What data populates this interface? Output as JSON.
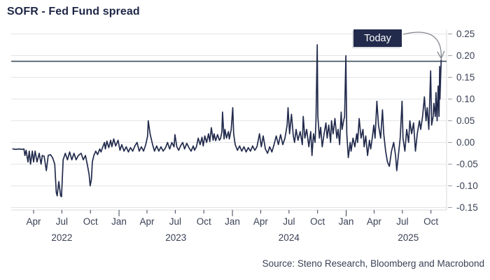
{
  "title": "SOFR - Fed Fund spread",
  "source": "Source: Steno Research, Bloomberg and Macrobond",
  "annotation": {
    "label": "Today"
  },
  "colors": {
    "series": "#222b4c",
    "grid": "#e3e4e6",
    "axis_line": "#d8dade",
    "tick": "#9aa0ab",
    "tick_label": "#3a4156",
    "title": "#1e2646",
    "today_line": "#3f4e57",
    "annotation_bg": "#222b4c",
    "annotation_text": "#ffffff",
    "arrow": "#83878e"
  },
  "chart_data": {
    "type": "line",
    "title": "SOFR - Fed Fund spread",
    "xlabel": "",
    "ylabel": "",
    "x_range": [
      "2022-01-20",
      "2025-11-10"
    ],
    "ylim": [
      -0.15,
      0.25
    ],
    "grid": true,
    "legend": "none",
    "y_axis_side": "right",
    "y_ticks": [
      {
        "v": 0.25,
        "label": "0.25"
      },
      {
        "v": 0.2,
        "label": "0.20"
      },
      {
        "v": 0.15,
        "label": "0.15"
      },
      {
        "v": 0.1,
        "label": "0.10"
      },
      {
        "v": 0.05,
        "label": "0.05"
      },
      {
        "v": 0.0,
        "label": "0.00"
      },
      {
        "v": -0.05,
        "label": "-0.05"
      },
      {
        "v": -0.1,
        "label": "-0.10"
      },
      {
        "v": -0.15,
        "label": "-0.15"
      }
    ],
    "x_ticks": [
      {
        "label": "Apr",
        "date": "2022-04-01"
      },
      {
        "label": "Jul",
        "date": "2022-07-01"
      },
      {
        "label": "Oct",
        "date": "2022-10-01"
      },
      {
        "label": "Jan",
        "date": "2023-01-01"
      },
      {
        "label": "Apr",
        "date": "2023-04-01"
      },
      {
        "label": "Jul",
        "date": "2023-07-01"
      },
      {
        "label": "Oct",
        "date": "2023-10-01"
      },
      {
        "label": "Jan",
        "date": "2024-01-01"
      },
      {
        "label": "Apr",
        "date": "2024-04-01"
      },
      {
        "label": "Jul",
        "date": "2024-07-01"
      },
      {
        "label": "Oct",
        "date": "2024-10-01"
      },
      {
        "label": "Jan",
        "date": "2025-01-01"
      },
      {
        "label": "Apr",
        "date": "2025-04-01"
      },
      {
        "label": "Jul",
        "date": "2025-07-01"
      },
      {
        "label": "Oct",
        "date": "2025-10-01"
      }
    ],
    "year_labels": [
      {
        "label": "2022",
        "date": "2022-07-01"
      },
      {
        "label": "2023",
        "date": "2023-07-03"
      },
      {
        "label": "2024",
        "date": "2024-07-01"
      },
      {
        "label": "2025",
        "date": "2025-07-20"
      }
    ],
    "today_line_value": 0.187,
    "series": [
      {
        "name": "SOFR - Fed Fund spread",
        "points": [
          [
            "2022-01-24",
            -0.015
          ],
          [
            "2022-02-03",
            -0.016
          ],
          [
            "2022-02-14",
            -0.015
          ],
          [
            "2022-02-24",
            -0.016
          ],
          [
            "2022-03-01",
            -0.015
          ],
          [
            "2022-03-04",
            -0.03
          ],
          [
            "2022-03-08",
            -0.018
          ],
          [
            "2022-03-14",
            -0.045
          ],
          [
            "2022-03-18",
            -0.02
          ],
          [
            "2022-03-22",
            -0.05
          ],
          [
            "2022-03-28",
            -0.02
          ],
          [
            "2022-04-01",
            -0.045
          ],
          [
            "2022-04-06",
            -0.02
          ],
          [
            "2022-04-12",
            -0.045
          ],
          [
            "2022-04-19",
            -0.025
          ],
          [
            "2022-04-25",
            -0.05
          ],
          [
            "2022-04-29",
            -0.03
          ],
          [
            "2022-05-05",
            -0.032
          ],
          [
            "2022-05-12",
            -0.065
          ],
          [
            "2022-05-18",
            -0.03
          ],
          [
            "2022-05-25",
            -0.028
          ],
          [
            "2022-06-01",
            -0.035
          ],
          [
            "2022-06-08",
            -0.05
          ],
          [
            "2022-06-13",
            -0.115
          ],
          [
            "2022-06-16",
            -0.123
          ],
          [
            "2022-06-21",
            -0.09
          ],
          [
            "2022-06-27",
            -0.123
          ],
          [
            "2022-06-30",
            -0.125
          ],
          [
            "2022-07-05",
            -0.04
          ],
          [
            "2022-07-12",
            -0.025
          ],
          [
            "2022-07-19",
            -0.04
          ],
          [
            "2022-07-26",
            -0.022
          ],
          [
            "2022-08-02",
            -0.04
          ],
          [
            "2022-08-09",
            -0.025
          ],
          [
            "2022-08-16",
            -0.04
          ],
          [
            "2022-08-23",
            -0.03
          ],
          [
            "2022-09-01",
            -0.025
          ],
          [
            "2022-09-08",
            -0.04
          ],
          [
            "2022-09-15",
            -0.03
          ],
          [
            "2022-09-22",
            -0.055
          ],
          [
            "2022-09-27",
            -0.075
          ],
          [
            "2022-09-30",
            -0.1
          ],
          [
            "2022-10-04",
            -0.085
          ],
          [
            "2022-10-07",
            -0.045
          ],
          [
            "2022-10-12",
            -0.03
          ],
          [
            "2022-10-18",
            -0.02
          ],
          [
            "2022-10-24",
            -0.028
          ],
          [
            "2022-10-31",
            -0.015
          ],
          [
            "2022-11-04",
            -0.022
          ],
          [
            "2022-11-09",
            -0.012
          ],
          [
            "2022-11-15",
            0.0
          ],
          [
            "2022-11-18",
            -0.015
          ],
          [
            "2022-11-23",
            0.003
          ],
          [
            "2022-11-29",
            -0.012
          ],
          [
            "2022-12-05",
            0.005
          ],
          [
            "2022-12-09",
            -0.01
          ],
          [
            "2022-12-15",
            0.008
          ],
          [
            "2022-12-21",
            -0.008
          ],
          [
            "2022-12-29",
            0.005
          ],
          [
            "2023-01-04",
            -0.018
          ],
          [
            "2023-01-10",
            -0.005
          ],
          [
            "2023-01-17",
            -0.02
          ],
          [
            "2023-01-24",
            -0.01
          ],
          [
            "2023-01-31",
            -0.022
          ],
          [
            "2023-02-07",
            -0.012
          ],
          [
            "2023-02-14",
            -0.02
          ],
          [
            "2023-02-21",
            -0.008
          ],
          [
            "2023-02-28",
            0.0
          ],
          [
            "2023-03-07",
            -0.02
          ],
          [
            "2023-03-14",
            -0.01
          ],
          [
            "2023-03-21",
            -0.02
          ],
          [
            "2023-03-28",
            -0.005
          ],
          [
            "2023-04-03",
            0.015
          ],
          [
            "2023-04-05",
            0.05
          ],
          [
            "2023-04-11",
            0.02
          ],
          [
            "2023-04-19",
            -0.005
          ],
          [
            "2023-04-25",
            -0.02
          ],
          [
            "2023-05-02",
            -0.008
          ],
          [
            "2023-05-09",
            -0.02
          ],
          [
            "2023-05-16",
            -0.01
          ],
          [
            "2023-05-23",
            -0.02
          ],
          [
            "2023-05-31",
            -0.012
          ],
          [
            "2023-06-06",
            0.0
          ],
          [
            "2023-06-13",
            -0.015
          ],
          [
            "2023-06-20",
            0.0
          ],
          [
            "2023-06-27",
            -0.01
          ],
          [
            "2023-06-30",
            0.018
          ],
          [
            "2023-07-06",
            -0.01
          ],
          [
            "2023-07-12",
            -0.018
          ],
          [
            "2023-07-18",
            -0.008
          ],
          [
            "2023-07-25",
            0.0
          ],
          [
            "2023-07-31",
            -0.015
          ],
          [
            "2023-08-07",
            -0.002
          ],
          [
            "2023-08-14",
            -0.012
          ],
          [
            "2023-08-21",
            -0.02
          ],
          [
            "2023-08-28",
            -0.008
          ],
          [
            "2023-09-01",
            -0.018
          ],
          [
            "2023-09-07",
            -0.01
          ],
          [
            "2023-09-13",
            0.01
          ],
          [
            "2023-09-19",
            -0.005
          ],
          [
            "2023-09-25",
            0.012
          ],
          [
            "2023-09-29",
            -0.008
          ],
          [
            "2023-10-04",
            0.015
          ],
          [
            "2023-10-10",
            0.0
          ],
          [
            "2023-10-16",
            0.02
          ],
          [
            "2023-10-20",
            0.002
          ],
          [
            "2023-10-25",
            0.034
          ],
          [
            "2023-10-31",
            0.005
          ],
          [
            "2023-11-03",
            0.02
          ],
          [
            "2023-11-08",
            0.004
          ],
          [
            "2023-11-14",
            0.018
          ],
          [
            "2023-11-20",
            0.005
          ],
          [
            "2023-11-24",
            0.01
          ],
          [
            "2023-11-28",
            0.025
          ],
          [
            "2023-11-30",
            0.07
          ],
          [
            "2023-12-05",
            0.008
          ],
          [
            "2023-12-08",
            0.03
          ],
          [
            "2023-12-13",
            0.01
          ],
          [
            "2023-12-19",
            0.025
          ],
          [
            "2023-12-22",
            0.008
          ],
          [
            "2023-12-28",
            0.03
          ],
          [
            "2024-01-02",
            0.08
          ],
          [
            "2024-01-05",
            0.02
          ],
          [
            "2024-01-10",
            -0.005
          ],
          [
            "2024-01-17",
            -0.018
          ],
          [
            "2024-01-24",
            -0.008
          ],
          [
            "2024-01-31",
            -0.02
          ],
          [
            "2024-02-07",
            -0.01
          ],
          [
            "2024-02-14",
            -0.022
          ],
          [
            "2024-02-21",
            -0.012
          ],
          [
            "2024-02-28",
            -0.02
          ],
          [
            "2024-03-06",
            -0.008
          ],
          [
            "2024-03-13",
            -0.018
          ],
          [
            "2024-03-20",
            -0.01
          ],
          [
            "2024-03-28",
            0.02
          ],
          [
            "2024-04-03",
            -0.01
          ],
          [
            "2024-04-09",
            0.015
          ],
          [
            "2024-04-16",
            -0.015
          ],
          [
            "2024-04-23",
            -0.025
          ],
          [
            "2024-04-30",
            -0.01
          ],
          [
            "2024-05-07",
            -0.022
          ],
          [
            "2024-05-14",
            -0.005
          ],
          [
            "2024-05-21",
            0.015
          ],
          [
            "2024-05-28",
            -0.005
          ],
          [
            "2024-06-04",
            0.018
          ],
          [
            "2024-06-11",
            -0.005
          ],
          [
            "2024-06-18",
            0.01
          ],
          [
            "2024-06-25",
            0.04
          ],
          [
            "2024-06-28",
            0.08
          ],
          [
            "2024-07-03",
            0.02
          ],
          [
            "2024-07-09",
            0.065
          ],
          [
            "2024-07-15",
            0.015
          ],
          [
            "2024-07-19",
            0.0
          ],
          [
            "2024-07-24",
            0.03
          ],
          [
            "2024-07-30",
            0.005
          ],
          [
            "2024-08-06",
            0.025
          ],
          [
            "2024-08-13",
            -0.005
          ],
          [
            "2024-08-16",
            0.06
          ],
          [
            "2024-08-21",
            0.01
          ],
          [
            "2024-08-27",
            0.03
          ],
          [
            "2024-09-03",
            -0.01
          ],
          [
            "2024-09-09",
            0.025
          ],
          [
            "2024-09-13",
            -0.03
          ],
          [
            "2024-09-18",
            0.02
          ],
          [
            "2024-09-23",
            0.0
          ],
          [
            "2024-09-26",
            0.05
          ],
          [
            "2024-09-30",
            0.225
          ],
          [
            "2024-10-02",
            0.06
          ],
          [
            "2024-10-07",
            0.01
          ],
          [
            "2024-10-11",
            0.035
          ],
          [
            "2024-10-16",
            -0.01
          ],
          [
            "2024-10-22",
            0.02
          ],
          [
            "2024-10-28",
            0.045
          ],
          [
            "2024-11-01",
            0.01
          ],
          [
            "2024-11-06",
            0.04
          ],
          [
            "2024-11-12",
            0.0
          ],
          [
            "2024-11-15",
            0.05
          ],
          [
            "2024-11-20",
            0.02
          ],
          [
            "2024-11-26",
            0.055
          ],
          [
            "2024-12-02",
            0.01
          ],
          [
            "2024-12-06",
            0.03
          ],
          [
            "2024-12-11",
            -0.005
          ],
          [
            "2024-12-16",
            0.07
          ],
          [
            "2024-12-19",
            0.03
          ],
          [
            "2024-12-24",
            0.05
          ],
          [
            "2024-12-27",
            0.06
          ],
          [
            "2024-12-31",
            0.2
          ],
          [
            "2025-01-03",
            0.02
          ],
          [
            "2025-01-08",
            -0.035
          ],
          [
            "2025-01-14",
            0.0
          ],
          [
            "2025-01-17",
            -0.02
          ],
          [
            "2025-01-23",
            0.01
          ],
          [
            "2025-01-29",
            -0.01
          ],
          [
            "2025-02-04",
            0.02
          ],
          [
            "2025-02-07",
            0.0
          ],
          [
            "2025-02-12",
            0.055
          ],
          [
            "2025-02-18",
            0.01
          ],
          [
            "2025-02-24",
            0.03
          ],
          [
            "2025-02-28",
            -0.01
          ],
          [
            "2025-03-05",
            0.015
          ],
          [
            "2025-03-11",
            -0.03
          ],
          [
            "2025-03-17",
            0.005
          ],
          [
            "2025-03-21",
            -0.015
          ],
          [
            "2025-03-26",
            0.01
          ],
          [
            "2025-03-31",
            0.04
          ],
          [
            "2025-04-04",
            0.01
          ],
          [
            "2025-04-10",
            0.095
          ],
          [
            "2025-04-15",
            0.04
          ],
          [
            "2025-04-22",
            0.01
          ],
          [
            "2025-04-28",
            0.075
          ],
          [
            "2025-05-02",
            0.02
          ],
          [
            "2025-05-08",
            -0.02
          ],
          [
            "2025-05-14",
            -0.045
          ],
          [
            "2025-05-20",
            -0.055
          ],
          [
            "2025-05-27",
            -0.02
          ],
          [
            "2025-06-03",
            0.0
          ],
          [
            "2025-06-09",
            -0.03
          ],
          [
            "2025-06-13",
            -0.065
          ],
          [
            "2025-06-18",
            -0.03
          ],
          [
            "2025-06-24",
            0.01
          ],
          [
            "2025-06-30",
            0.095
          ],
          [
            "2025-07-03",
            0.01
          ],
          [
            "2025-07-09",
            -0.02
          ],
          [
            "2025-07-15",
            0.03
          ],
          [
            "2025-07-21",
            0.0
          ],
          [
            "2025-07-25",
            0.05
          ],
          [
            "2025-07-31",
            0.02
          ],
          [
            "2025-08-06",
            0.045
          ],
          [
            "2025-08-12",
            -0.02
          ],
          [
            "2025-08-18",
            0.02
          ],
          [
            "2025-08-25",
            0.05
          ],
          [
            "2025-08-29",
            0.03
          ],
          [
            "2025-09-04",
            0.06
          ],
          [
            "2025-09-10",
            0.105
          ],
          [
            "2025-09-15",
            0.05
          ],
          [
            "2025-09-19",
            0.08
          ],
          [
            "2025-09-24",
            0.03
          ],
          [
            "2025-09-30",
            0.165
          ],
          [
            "2025-10-03",
            0.04
          ],
          [
            "2025-10-08",
            0.06
          ],
          [
            "2025-10-10",
            0.09
          ],
          [
            "2025-10-15",
            0.06
          ],
          [
            "2025-10-17",
            0.115
          ],
          [
            "2025-10-21",
            0.05
          ],
          [
            "2025-10-24",
            0.13
          ],
          [
            "2025-10-27",
            0.06
          ],
          [
            "2025-10-29",
            0.175
          ],
          [
            "2025-10-30",
            0.1
          ],
          [
            "2025-11-03",
            0.19
          ]
        ]
      }
    ]
  }
}
